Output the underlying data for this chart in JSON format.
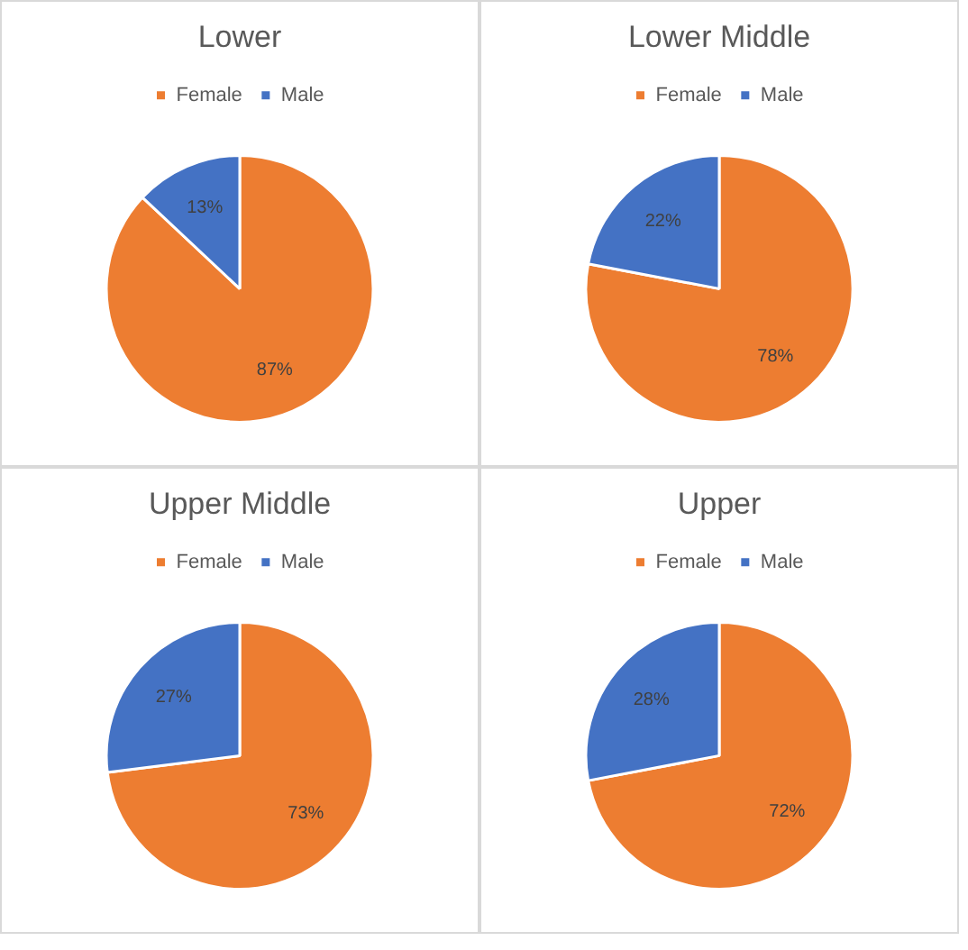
{
  "chart_data": [
    {
      "type": "pie",
      "title": "Lower",
      "categories": [
        "Female",
        "Male"
      ],
      "values": [
        87,
        13
      ],
      "colors": [
        "#ed7d31",
        "#4472c4"
      ],
      "value_labels": [
        "87%",
        "13%"
      ],
      "legend": "top"
    },
    {
      "type": "pie",
      "title": "Lower Middle",
      "categories": [
        "Female",
        "Male"
      ],
      "values": [
        78,
        22
      ],
      "colors": [
        "#ed7d31",
        "#4472c4"
      ],
      "value_labels": [
        "78%",
        "22%"
      ],
      "legend": "top"
    },
    {
      "type": "pie",
      "title": "Upper Middle",
      "categories": [
        "Female",
        "Male"
      ],
      "values": [
        73,
        27
      ],
      "colors": [
        "#ed7d31",
        "#4472c4"
      ],
      "value_labels": [
        "73%",
        "27%"
      ],
      "legend": "top"
    },
    {
      "type": "pie",
      "title": "Upper",
      "categories": [
        "Female",
        "Male"
      ],
      "values": [
        72,
        28
      ],
      "colors": [
        "#ed7d31",
        "#4472c4"
      ],
      "value_labels": [
        "72%",
        "28%"
      ],
      "legend": "top"
    }
  ]
}
